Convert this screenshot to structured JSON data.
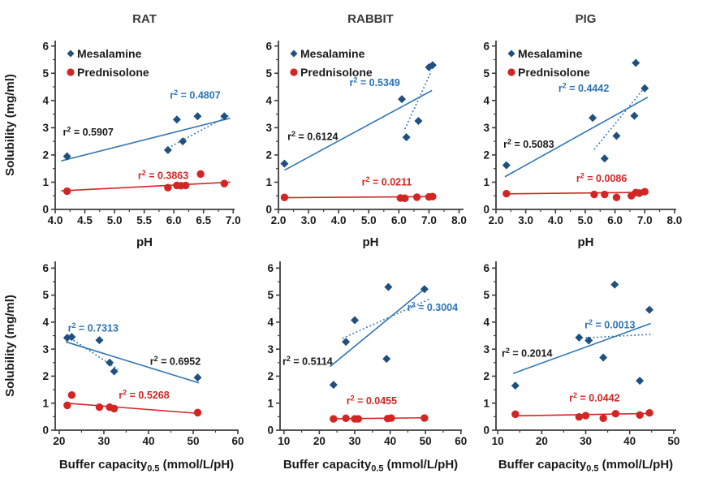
{
  "colors": {
    "blue_marker": "#1f5080",
    "blue_line": "#2d74b3",
    "red": "#d42525",
    "axis": "#3d3d3d",
    "text": "#1a1a1a",
    "title": "#3a3a3a"
  },
  "ylabel": "Solubility (mg/ml)",
  "yticks": {
    "vals": [
      0,
      1,
      2,
      3,
      4,
      5,
      6
    ],
    "labels": [
      "0",
      "1",
      "2",
      "3",
      "4",
      "5",
      "6"
    ]
  },
  "r2_prefix": {
    "base": "r",
    "sup": "2",
    "eq": " = "
  },
  "legend_labels": {
    "mesalamine": "Mesalamine",
    "prednisolone": "Prednisolone"
  },
  "chart_data": [
    {
      "id": "rat-ph",
      "type": "scatter",
      "title": "RAT",
      "xlabel": {
        "pre": "pH",
        "sub": "",
        "post": ""
      },
      "ylabel": "Solubility (mg/ml)",
      "xlim": [
        4.0,
        7.01
      ],
      "ylim": [
        0,
        6.2
      ],
      "legend": true,
      "xticks": {
        "vals": [
          4.0,
          4.5,
          5.0,
          5.5,
          6.0,
          6.5,
          7.0
        ],
        "labels": [
          "4.0",
          "4.5",
          "5.0",
          "5.5",
          "6.0",
          "6.5",
          "7.0"
        ]
      },
      "series": [
        {
          "name": "Mesalamine",
          "marker": "diamond",
          "color": "blue",
          "points": [
            [
              4.2,
              1.95
            ],
            [
              5.9,
              2.18
            ],
            [
              6.05,
              3.3
            ],
            [
              6.15,
              2.5
            ],
            [
              6.4,
              3.42
            ],
            [
              6.85,
              3.42
            ]
          ]
        },
        {
          "name": "Prednisolone",
          "marker": "circle",
          "color": "red",
          "points": [
            [
              4.2,
              0.67
            ],
            [
              5.9,
              0.8
            ],
            [
              6.05,
              0.88
            ],
            [
              6.12,
              0.87
            ],
            [
              6.2,
              0.88
            ],
            [
              6.45,
              1.3
            ],
            [
              6.85,
              0.95
            ]
          ]
        }
      ],
      "trendlines": [
        {
          "style": "solid",
          "color": "blue",
          "from": [
            4.1,
            1.78
          ],
          "to": [
            6.95,
            3.35
          ]
        },
        {
          "style": "dotted",
          "color": "blue",
          "from": [
            5.9,
            2.25
          ],
          "to": [
            6.95,
            3.48
          ]
        },
        {
          "style": "solid",
          "color": "red",
          "from": [
            4.1,
            0.68
          ],
          "to": [
            6.95,
            1.0
          ]
        }
      ],
      "annotations": [
        {
          "r2": "0.5907",
          "color": "black",
          "x": 4.13,
          "y": 2.84,
          "anchor": "start"
        },
        {
          "r2": "0.4807",
          "color": "blue",
          "x": 6.36,
          "y": 4.2,
          "anchor": "middle"
        },
        {
          "r2": "0.3863",
          "color": "red",
          "x": 5.82,
          "y": 1.25,
          "anchor": "middle"
        }
      ]
    },
    {
      "id": "rabbit-ph",
      "type": "scatter",
      "title": "RABBIT",
      "xlabel": {
        "pre": "pH",
        "sub": "",
        "post": ""
      },
      "ylabel": "Solubility (mg/ml)",
      "xlim": [
        2.0,
        8.12
      ],
      "ylim": [
        0,
        6.2
      ],
      "legend": true,
      "xticks": {
        "vals": [
          2.0,
          3.0,
          4.0,
          5.0,
          6.0,
          7.0,
          8.0
        ],
        "labels": [
          "2.0",
          "3.0",
          "4.0",
          "5.0",
          "6.0",
          "7.0",
          "8.0"
        ]
      },
      "series": [
        {
          "name": "Mesalamine",
          "marker": "diamond",
          "color": "blue",
          "points": [
            [
              2.2,
              1.68
            ],
            [
              6.1,
              4.05
            ],
            [
              6.25,
              2.65
            ],
            [
              6.65,
              3.25
            ],
            [
              7.0,
              5.22
            ],
            [
              7.12,
              5.3
            ]
          ]
        },
        {
          "name": "Prednisolone",
          "marker": "circle",
          "color": "red",
          "points": [
            [
              2.2,
              0.44
            ],
            [
              6.05,
              0.42
            ],
            [
              6.2,
              0.41
            ],
            [
              6.6,
              0.45
            ],
            [
              7.0,
              0.46
            ],
            [
              7.12,
              0.47
            ]
          ]
        }
      ],
      "trendlines": [
        {
          "style": "solid",
          "color": "blue",
          "from": [
            2.2,
            1.44
          ],
          "to": [
            7.1,
            4.37
          ]
        },
        {
          "style": "dotted",
          "color": "blue",
          "from": [
            6.2,
            2.95
          ],
          "to": [
            7.08,
            5.08
          ]
        },
        {
          "style": "solid",
          "color": "red",
          "from": [
            2.2,
            0.43
          ],
          "to": [
            7.15,
            0.47
          ]
        }
      ],
      "annotations": [
        {
          "r2": "0.6124",
          "color": "black",
          "x": 2.3,
          "y": 2.68,
          "anchor": "start"
        },
        {
          "r2": "0.5349",
          "color": "blue",
          "x": 5.2,
          "y": 4.67,
          "anchor": "middle"
        },
        {
          "r2": "0.0211",
          "color": "red",
          "x": 5.6,
          "y": 1.02,
          "anchor": "middle"
        }
      ]
    },
    {
      "id": "pig-ph",
      "type": "scatter",
      "title": "PIG",
      "xlabel": {
        "pre": "pH",
        "sub": "",
        "post": ""
      },
      "ylabel": "Solubility (mg/ml)",
      "xlim": [
        2.0,
        8.03
      ],
      "ylim": [
        0,
        6.2
      ],
      "legend": true,
      "xticks": {
        "vals": [
          2.0,
          3.0,
          4.0,
          5.0,
          6.0,
          7.0,
          8.0
        ],
        "labels": [
          "2.0",
          "3.0",
          "4.0",
          "5.0",
          "6.0",
          "7.0",
          "8.0"
        ]
      },
      "series": [
        {
          "name": "Mesalamine",
          "marker": "diamond",
          "color": "blue",
          "points": [
            [
              2.35,
              1.62
            ],
            [
              5.25,
              3.36
            ],
            [
              5.65,
              1.87
            ],
            [
              6.05,
              2.7
            ],
            [
              6.65,
              3.44
            ],
            [
              6.7,
              5.38
            ],
            [
              7.0,
              4.45
            ]
          ]
        },
        {
          "name": "Prednisolone",
          "marker": "circle",
          "color": "red",
          "points": [
            [
              2.35,
              0.58
            ],
            [
              5.3,
              0.55
            ],
            [
              5.65,
              0.55
            ],
            [
              6.05,
              0.44
            ],
            [
              6.55,
              0.5
            ],
            [
              6.7,
              0.62
            ],
            [
              6.82,
              0.6
            ],
            [
              7.0,
              0.65
            ]
          ]
        }
      ],
      "trendlines": [
        {
          "style": "solid",
          "color": "blue",
          "from": [
            2.3,
            1.2
          ],
          "to": [
            7.1,
            4.12
          ]
        },
        {
          "style": "dotted",
          "color": "blue",
          "from": [
            5.3,
            2.2
          ],
          "to": [
            7.05,
            4.55
          ]
        },
        {
          "style": "solid",
          "color": "red",
          "from": [
            2.3,
            0.57
          ],
          "to": [
            7.1,
            0.63
          ]
        }
      ],
      "annotations": [
        {
          "r2": "0.5083",
          "color": "black",
          "x": 2.25,
          "y": 2.4,
          "anchor": "start"
        },
        {
          "r2": "0.4442",
          "color": "blue",
          "x": 4.95,
          "y": 4.45,
          "anchor": "middle"
        },
        {
          "r2": "0.0086",
          "color": "red",
          "x": 5.55,
          "y": 1.15,
          "anchor": "middle"
        }
      ]
    },
    {
      "id": "rat-buffer",
      "type": "scatter",
      "title": "",
      "xlabel": {
        "pre": "Buffer capacity",
        "sub": "0.5",
        "post": " (mmol/L/pH)"
      },
      "ylabel": "Solubility (mg/ml)",
      "xlim": [
        19.1,
        60.0
      ],
      "ylim": [
        0,
        6.25
      ],
      "legend": false,
      "xticks": {
        "vals": [
          20,
          30,
          40,
          50,
          60
        ],
        "labels": [
          "20",
          "30",
          "40",
          "50",
          "60"
        ]
      },
      "series": [
        {
          "name": "Mesalamine",
          "marker": "diamond",
          "color": "blue",
          "points": [
            [
              21.8,
              3.42
            ],
            [
              22.8,
              3.45
            ],
            [
              29,
              3.33
            ],
            [
              31.3,
              2.5
            ],
            [
              32.3,
              2.18
            ],
            [
              51,
              1.95
            ]
          ]
        },
        {
          "name": "Prednisolone",
          "marker": "circle",
          "color": "red",
          "points": [
            [
              21.8,
              0.92
            ],
            [
              22.8,
              1.3
            ],
            [
              29,
              0.85
            ],
            [
              31.3,
              0.85
            ],
            [
              32.3,
              0.8
            ],
            [
              51,
              0.65
            ]
          ]
        }
      ],
      "trendlines": [
        {
          "style": "solid",
          "color": "blue",
          "from": [
            21.5,
            3.27
          ],
          "to": [
            51.3,
            1.75
          ]
        },
        {
          "style": "dotted",
          "color": "blue",
          "from": [
            21.8,
            3.48
          ],
          "to": [
            33.2,
            2.25
          ]
        },
        {
          "style": "solid",
          "color": "red",
          "from": [
            21.5,
            1.0
          ],
          "to": [
            51.3,
            0.62
          ]
        }
      ],
      "annotations": [
        {
          "r2": "0.7313",
          "color": "blue",
          "x": 27.6,
          "y": 3.78,
          "anchor": "middle"
        },
        {
          "r2": "0.6952",
          "color": "black",
          "x": 46.0,
          "y": 2.55,
          "anchor": "middle"
        },
        {
          "r2": "0.5268",
          "color": "red",
          "x": 39.0,
          "y": 1.3,
          "anchor": "middle"
        }
      ]
    },
    {
      "id": "rabbit-buffer",
      "type": "scatter",
      "title": "",
      "xlabel": {
        "pre": "Buffer capacity",
        "sub": "0.5",
        "post": " (mmol/L/pH)"
      },
      "ylabel": "Solubility (mg/ml)",
      "xlim": [
        8.9,
        60.05
      ],
      "ylim": [
        0,
        6.25
      ],
      "legend": false,
      "xticks": {
        "vals": [
          10,
          20,
          30,
          40,
          50,
          60
        ],
        "labels": [
          "10",
          "20",
          "30",
          "40",
          "50",
          "60"
        ]
      },
      "series": [
        {
          "name": "Mesalamine",
          "marker": "diamond",
          "color": "blue",
          "points": [
            [
              24,
              1.68
            ],
            [
              27.5,
              3.27
            ],
            [
              30,
              4.07
            ],
            [
              39,
              2.64
            ],
            [
              39.5,
              5.3
            ],
            [
              49.7,
              5.22
            ]
          ]
        },
        {
          "name": "Prednisolone",
          "marker": "circle",
          "color": "red",
          "points": [
            [
              24,
              0.42
            ],
            [
              27.5,
              0.44
            ],
            [
              30,
              0.42
            ],
            [
              31,
              0.42
            ],
            [
              39.3,
              0.43
            ],
            [
              40.3,
              0.45
            ],
            [
              49.7,
              0.45
            ]
          ]
        }
      ],
      "trendlines": [
        {
          "style": "solid",
          "color": "blue",
          "from": [
            23,
            2.35
          ],
          "to": [
            50,
            5.26
          ]
        },
        {
          "style": "dotted",
          "color": "blue",
          "from": [
            26.5,
            3.4
          ],
          "to": [
            51.3,
            4.86
          ]
        },
        {
          "style": "solid",
          "color": "red",
          "from": [
            23.5,
            0.42
          ],
          "to": [
            50,
            0.46
          ]
        }
      ],
      "annotations": [
        {
          "r2": "0.5114",
          "color": "black",
          "x": 9.6,
          "y": 2.55,
          "anchor": "start"
        },
        {
          "r2": "0.3004",
          "color": "blue",
          "x": 52.0,
          "y": 4.55,
          "anchor": "middle"
        },
        {
          "r2": "0.0455",
          "color": "red",
          "x": 34.8,
          "y": 1.1,
          "anchor": "middle"
        }
      ]
    },
    {
      "id": "pig-buffer",
      "type": "scatter",
      "title": "",
      "xlabel": {
        "pre": "Buffer capacity",
        "sub": "0.5",
        "post": " (mmol/L/pH)"
      },
      "ylabel": "Solubility (mg/ml)",
      "xlim": [
        9.6,
        50.4
      ],
      "ylim": [
        0,
        6.25
      ],
      "legend": false,
      "xticks": {
        "vals": [
          10,
          20,
          30,
          40,
          50
        ],
        "labels": [
          "10",
          "20",
          "30",
          "40",
          "50"
        ]
      },
      "series": [
        {
          "name": "Mesalamine",
          "marker": "diamond",
          "color": "blue",
          "points": [
            [
              14,
              1.65
            ],
            [
              28.5,
              3.43
            ],
            [
              30.7,
              3.32
            ],
            [
              34,
              2.69
            ],
            [
              36.6,
              5.39
            ],
            [
              42.3,
              1.83
            ],
            [
              44.5,
              4.46
            ]
          ]
        },
        {
          "name": "Prednisolone",
          "marker": "circle",
          "color": "red",
          "points": [
            [
              14,
              0.59
            ],
            [
              28.5,
              0.49
            ],
            [
              30,
              0.54
            ],
            [
              34,
              0.44
            ],
            [
              36.8,
              0.61
            ],
            [
              42.3,
              0.56
            ],
            [
              44.5,
              0.64
            ]
          ]
        }
      ],
      "trendlines": [
        {
          "style": "solid",
          "color": "blue",
          "from": [
            13.5,
            2.1
          ],
          "to": [
            44.8,
            3.95
          ]
        },
        {
          "style": "dotted",
          "color": "blue",
          "from": [
            30,
            3.42
          ],
          "to": [
            45.3,
            3.55
          ]
        },
        {
          "style": "solid",
          "color": "red",
          "from": [
            13.5,
            0.53
          ],
          "to": [
            44.8,
            0.62
          ]
        }
      ],
      "annotations": [
        {
          "r2": "0.2014",
          "color": "black",
          "x": 10.9,
          "y": 2.85,
          "anchor": "start"
        },
        {
          "r2": "0.0013",
          "color": "blue",
          "x": 35.5,
          "y": 3.9,
          "anchor": "middle"
        },
        {
          "r2": "0.0442",
          "color": "red",
          "x": 32.0,
          "y": 1.2,
          "anchor": "middle"
        }
      ]
    }
  ]
}
